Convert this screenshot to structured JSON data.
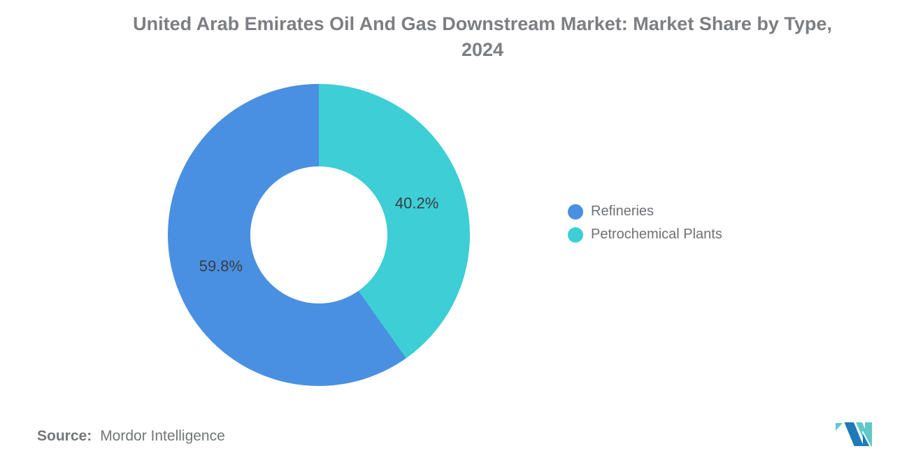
{
  "header": {
    "title_line1": "United Arab Emirates Oil And Gas Downstream Market: Market Share by Type,",
    "title_line2": "2024"
  },
  "chart_data": {
    "type": "pie",
    "subtype": "donut",
    "title": "United Arab Emirates Oil And Gas Downstream Market: Market Share by Type, 2024",
    "unit": "%",
    "series": [
      {
        "name": "Refineries",
        "value": 59.8,
        "label": "59.8%",
        "color": "#4a90e2"
      },
      {
        "name": "Petrochemical Plants",
        "value": 40.2,
        "label": "40.2%",
        "color": "#3dced6"
      }
    ],
    "clockwise_from_top_order": [
      1,
      0
    ],
    "legend_position": "right",
    "inner_radius_ratio": 0.45,
    "label_radius_px": 147
  },
  "legend": {
    "items": [
      {
        "label": "Refineries",
        "color": "#4a90e2"
      },
      {
        "label": "Petrochemical Plants",
        "color": "#3dced6"
      }
    ]
  },
  "source": {
    "prefix": "Source:",
    "text": "Mordor Intelligence"
  },
  "branding": {
    "logo_name": "mordor-intelligence-logo",
    "logo_blue": "#1f7ab8",
    "logo_teal": "#5ec8ca"
  }
}
